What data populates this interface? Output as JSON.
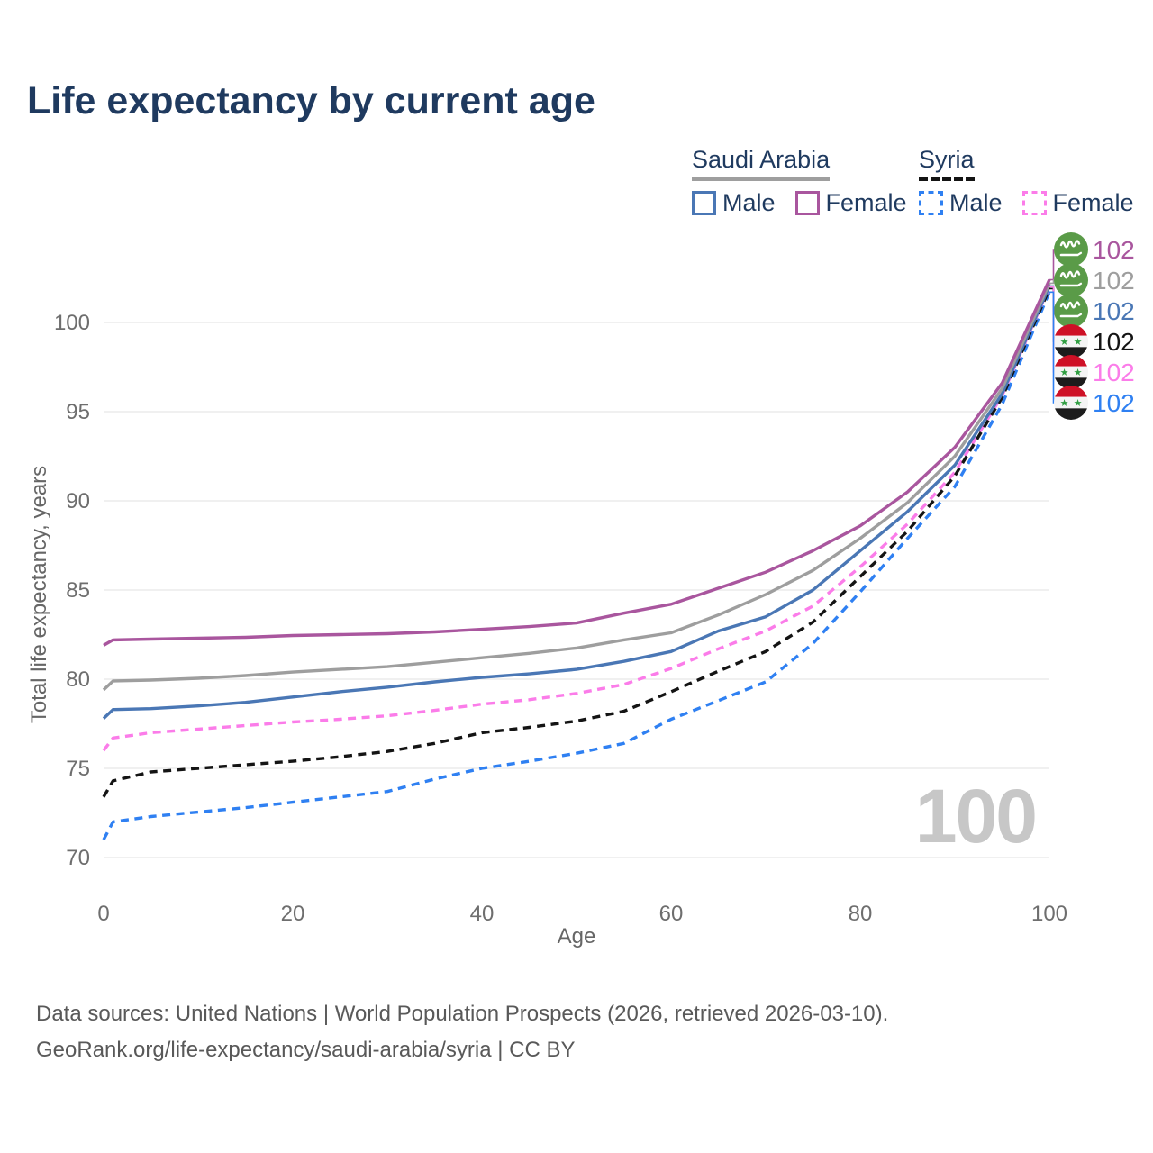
{
  "title": "Life expectancy by current age",
  "legend": {
    "groups": [
      {
        "country": "Saudi Arabia",
        "underline_style": "solid",
        "underline_color": "#9e9e9e",
        "items": [
          {
            "label": "Male",
            "color": "#4a77b5",
            "dashed": false
          },
          {
            "label": "Female",
            "color": "#a9569e",
            "dashed": false
          }
        ]
      },
      {
        "country": "Syria",
        "underline_style": "dashed",
        "underline_color": "#141414",
        "items": [
          {
            "label": "Male",
            "color": "#2f80f2",
            "dashed": true
          },
          {
            "label": "Female",
            "color": "#fb7ce9",
            "dashed": true
          }
        ]
      }
    ]
  },
  "chart_data": {
    "type": "line",
    "title": "Life expectancy by current age",
    "xlabel": "Age",
    "ylabel": "Total life expectancy, years",
    "x_ticks": [
      0,
      20,
      40,
      60,
      80,
      100
    ],
    "y_ticks": [
      70,
      75,
      80,
      85,
      90,
      95,
      100
    ],
    "xlim": [
      0,
      100
    ],
    "ylim": [
      70,
      103
    ],
    "grid": "horizontal",
    "gridline_color": "#ececec",
    "watermark": "100",
    "x": [
      0,
      1,
      5,
      10,
      15,
      20,
      25,
      30,
      35,
      40,
      45,
      50,
      55,
      60,
      65,
      70,
      75,
      80,
      85,
      90,
      95,
      100
    ],
    "series": [
      {
        "id": "saudi-arabia-female",
        "country": "Saudi Arabia",
        "sex": "Female",
        "color": "#a9569e",
        "dashed": false,
        "flag": "sa",
        "flag_name": "saudi-arabia-flag-icon",
        "end_label": "102",
        "values": [
          81.9,
          82.2,
          82.25,
          82.3,
          82.35,
          82.45,
          82.5,
          82.55,
          82.65,
          82.8,
          82.95,
          83.15,
          83.7,
          84.2,
          85.1,
          86.0,
          87.2,
          88.6,
          90.5,
          93.0,
          96.6,
          102.4
        ]
      },
      {
        "id": "saudi-arabia-both",
        "country": "Saudi Arabia",
        "sex": "Both sexes",
        "color": "#9e9e9e",
        "dashed": false,
        "flag": "sa",
        "flag_name": "saudi-arabia-flag-icon",
        "end_label": "102",
        "values": [
          79.4,
          79.9,
          79.95,
          80.05,
          80.2,
          80.4,
          80.55,
          80.7,
          80.95,
          81.2,
          81.45,
          81.75,
          82.2,
          82.6,
          83.6,
          84.75,
          86.1,
          87.9,
          89.9,
          92.5,
          96.3,
          102.2
        ]
      },
      {
        "id": "saudi-arabia-male",
        "country": "Saudi Arabia",
        "sex": "Male",
        "color": "#4a77b5",
        "dashed": false,
        "flag": "sa",
        "flag_name": "saudi-arabia-flag-icon",
        "end_label": "102",
        "values": [
          77.8,
          78.3,
          78.35,
          78.5,
          78.7,
          79.0,
          79.3,
          79.55,
          79.85,
          80.1,
          80.3,
          80.55,
          81.0,
          81.55,
          82.7,
          83.5,
          85.0,
          87.2,
          89.4,
          92.0,
          96.0,
          102.05
        ]
      },
      {
        "id": "syria-both",
        "country": "Syria",
        "sex": "Both sexes",
        "color": "#141414",
        "dashed": true,
        "flag": "sy",
        "flag_name": "syria-flag-icon",
        "end_label": "102",
        "values": [
          73.4,
          74.3,
          74.8,
          75.0,
          75.2,
          75.4,
          75.65,
          75.95,
          76.4,
          77.0,
          77.3,
          77.65,
          78.2,
          79.3,
          80.45,
          81.55,
          83.2,
          85.75,
          88.3,
          91.4,
          95.8,
          101.9
        ]
      },
      {
        "id": "syria-female",
        "country": "Syria",
        "sex": "Female",
        "color": "#fb7ce9",
        "dashed": true,
        "flag": "sy",
        "flag_name": "syria-flag-icon",
        "end_label": "102",
        "values": [
          76.0,
          76.7,
          77.0,
          77.2,
          77.4,
          77.6,
          77.75,
          77.95,
          78.25,
          78.6,
          78.85,
          79.2,
          79.7,
          80.6,
          81.7,
          82.7,
          84.1,
          86.3,
          88.7,
          91.6,
          95.9,
          102.0
        ]
      },
      {
        "id": "syria-male",
        "country": "Syria",
        "sex": "Male",
        "color": "#2f80f2",
        "dashed": true,
        "flag": "sy",
        "flag_name": "syria-flag-icon",
        "end_label": "102",
        "values": [
          71.0,
          72.0,
          72.3,
          72.55,
          72.8,
          73.1,
          73.4,
          73.7,
          74.4,
          75.0,
          75.4,
          75.85,
          76.4,
          77.75,
          78.8,
          79.85,
          82.0,
          84.9,
          87.9,
          90.8,
          95.4,
          101.7
        ]
      }
    ]
  },
  "footer": {
    "line1": "Data sources: United Nations | World Population Prospects (2026, retrieved 2026-03-10).",
    "line2": "GeoRank.org/life-expectancy/saudi-arabia/syria | CC BY"
  }
}
